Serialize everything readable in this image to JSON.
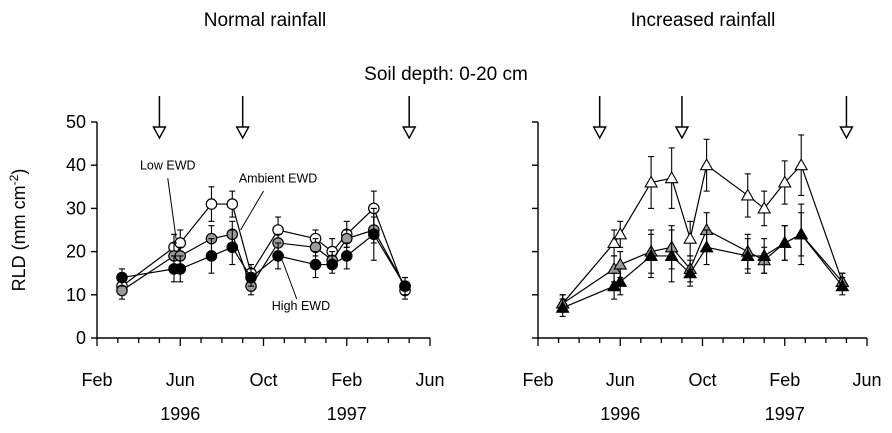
{
  "chart_data": {
    "type": "line",
    "subtitle": "Soil depth: 0-20 cm",
    "ylabel": "RLD (mm cm",
    "ylabel_sup": "-2",
    "ylabel_close": ")",
    "ylim": [
      0,
      50
    ],
    "yticks": [
      "0",
      "10",
      "20",
      "30",
      "40",
      "50"
    ],
    "xlim": [
      0,
      16
    ],
    "xticks": [
      {
        "x": 0,
        "label": "Feb"
      },
      {
        "x": 4,
        "label": "Jun"
      },
      {
        "x": 8,
        "label": "Oct"
      },
      {
        "x": 12,
        "label": "Feb"
      },
      {
        "x": 16,
        "label": "Jun"
      }
    ],
    "years": [
      {
        "x": 4,
        "label": "1996"
      },
      {
        "x": 12,
        "label": "1997"
      }
    ],
    "panels": [
      {
        "title": "Normal rainfall",
        "arrows_x": [
          3,
          7,
          15
        ],
        "annotations": [
          {
            "text": "Low EWD",
            "x": 3.4,
            "y": 39
          },
          {
            "text": "Ambient EWD",
            "x": 8.7,
            "y": 36
          },
          {
            "text": "High EWD",
            "x": 9.8,
            "y": 6.5
          }
        ],
        "series": [
          {
            "name": "Low EWD",
            "marker": "circle",
            "fill": "#ffffff",
            "x": [
              1.2,
              3.7,
              4.0,
              5.5,
              6.5,
              7.4,
              8.7,
              10.5,
              11.3,
              12.0,
              13.3,
              14.8
            ],
            "y": [
              12,
              21,
              22,
              31,
              31,
              15,
              25,
              23,
              20,
              24,
              30,
              11
            ],
            "err": [
              2,
              3,
              3,
              4,
              3,
              2,
              3,
              2,
              3,
              3,
              4,
              2
            ]
          },
          {
            "name": "Ambient EWD",
            "marker": "circle",
            "fill": "#9a9a9a",
            "x": [
              1.2,
              3.7,
              4.0,
              5.5,
              6.5,
              7.4,
              8.7,
              10.5,
              11.3,
              12.0,
              13.3,
              14.8
            ],
            "y": [
              11,
              19,
              19,
              23,
              24,
              12,
              22,
              21,
              18,
              23,
              25,
              12
            ],
            "err": [
              2,
              3,
              2,
              3,
              3,
              2,
              2,
              2,
              2,
              2,
              3,
              2
            ]
          },
          {
            "name": "High EWD",
            "marker": "circle",
            "fill": "#000000",
            "x": [
              1.2,
              3.7,
              4.0,
              5.5,
              6.5,
              7.4,
              8.7,
              10.5,
              11.3,
              12.0,
              13.3,
              14.8
            ],
            "y": [
              14,
              16,
              16,
              19,
              21,
              14,
              19,
              17,
              17,
              19,
              24,
              12
            ],
            "err": [
              2,
              3,
              3,
              4,
              4,
              2,
              3,
              3,
              2,
              3,
              6,
              2
            ]
          }
        ]
      },
      {
        "title": "Increased rainfall",
        "arrows_x": [
          3,
          7,
          15
        ],
        "annotations": [],
        "series": [
          {
            "name": "Low EWD",
            "marker": "triangle",
            "fill": "#ffffff",
            "x": [
              1.2,
              3.7,
              4.0,
              5.5,
              6.5,
              7.4,
              8.2,
              10.2,
              11.0,
              12.0,
              12.8,
              14.8
            ],
            "y": [
              8,
              22,
              24,
              36,
              37,
              23,
              40,
              33,
              30,
              36,
              40,
              13
            ],
            "err": [
              2,
              3,
              3,
              6,
              7,
              4,
              6,
              5,
              4,
              5,
              7,
              2
            ]
          },
          {
            "name": "Ambient EWD",
            "marker": "triangle",
            "fill": "#9a9a9a",
            "x": [
              1.2,
              3.7,
              4.0,
              5.5,
              6.5,
              7.4,
              8.2,
              10.2,
              11.0,
              12.0,
              12.8,
              14.8
            ],
            "y": [
              8,
              16,
              17,
              20,
              21,
              16,
              25,
              20,
              18,
              22,
              24,
              13
            ],
            "err": [
              2,
              3,
              3,
              5,
              5,
              3,
              4,
              4,
              3,
              4,
              5,
              2
            ]
          },
          {
            "name": "High EWD",
            "marker": "triangle",
            "fill": "#000000",
            "x": [
              1.2,
              3.7,
              4.0,
              5.5,
              6.5,
              7.4,
              8.2,
              10.2,
              11.0,
              12.0,
              12.8,
              14.8
            ],
            "y": [
              7,
              12,
              13,
              19,
              19,
              15,
              21,
              19,
              19,
              22,
              24,
              12
            ],
            "err": [
              2,
              3,
              3,
              5,
              6,
              3,
              4,
              4,
              4,
              4,
              7,
              2
            ]
          }
        ]
      }
    ]
  }
}
